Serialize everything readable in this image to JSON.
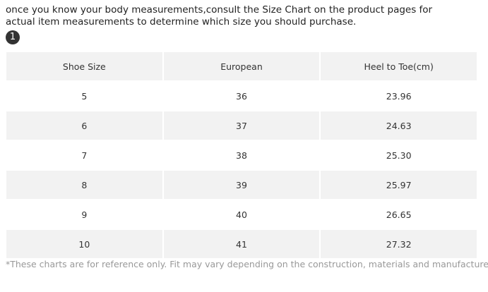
{
  "intro": "once you know your body measurements,consult the Size Chart on the product pages for actual item measurements to determine which size you should purchase.",
  "badge": "1",
  "table": {
    "headers": [
      "Shoe Size",
      "European",
      "Heel to Toe(cm)"
    ],
    "rows": [
      [
        "5",
        "36",
        "23.96"
      ],
      [
        "6",
        "37",
        "24.63"
      ],
      [
        "7",
        "38",
        "25.30"
      ],
      [
        "8",
        "39",
        "25.97"
      ],
      [
        "9",
        "40",
        "26.65"
      ],
      [
        "10",
        "41",
        "27.32"
      ]
    ]
  },
  "footnote": "*These charts are for reference only. Fit may vary depending on the construction, materials and manufacturer."
}
